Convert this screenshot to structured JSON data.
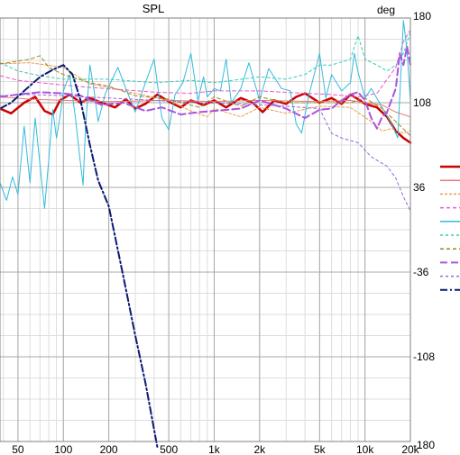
{
  "chart_data": {
    "type": "line",
    "title": "SPL",
    "right_axis_unit": "deg",
    "x_scale": "log",
    "xlim": [
      38,
      20000
    ],
    "ylim_right": [
      -180,
      180
    ],
    "x_ticks": [
      {
        "value": 50,
        "label": "50"
      },
      {
        "value": 100,
        "label": "100"
      },
      {
        "value": 200,
        "label": "200"
      },
      {
        "value": 500,
        "label": "500"
      },
      {
        "value": 1000,
        "label": "1k"
      },
      {
        "value": 2000,
        "label": "2k"
      },
      {
        "value": 5000,
        "label": "5k"
      },
      {
        "value": 10000,
        "label": "10k"
      },
      {
        "value": 20000,
        "label": "20k"
      }
    ],
    "y_ticks_right": [
      180,
      108,
      36,
      -36,
      -108,
      -180
    ],
    "grid": true,
    "legend_placement": "right",
    "series": [
      {
        "color": "#cc0000",
        "width": 2.5,
        "dash": "",
        "points": [
          [
            38,
            103
          ],
          [
            45,
            99
          ],
          [
            55,
            108
          ],
          [
            65,
            113
          ],
          [
            75,
            101
          ],
          [
            85,
            98
          ],
          [
            95,
            110
          ],
          [
            110,
            115
          ],
          [
            130,
            108
          ],
          [
            150,
            112
          ],
          [
            180,
            108
          ],
          [
            220,
            104
          ],
          [
            260,
            111
          ],
          [
            300,
            103
          ],
          [
            350,
            107
          ],
          [
            420,
            115
          ],
          [
            500,
            109
          ],
          [
            600,
            104
          ],
          [
            700,
            110
          ],
          [
            850,
            106
          ],
          [
            1000,
            110
          ],
          [
            1200,
            104
          ],
          [
            1500,
            112
          ],
          [
            1800,
            108
          ],
          [
            2100,
            100
          ],
          [
            2500,
            110
          ],
          [
            3000,
            107
          ],
          [
            3500,
            113
          ],
          [
            4000,
            116
          ],
          [
            5000,
            108
          ],
          [
            6000,
            112
          ],
          [
            7000,
            107
          ],
          [
            8000,
            115
          ],
          [
            9000,
            111
          ],
          [
            10000,
            107
          ],
          [
            12000,
            104
          ],
          [
            14000,
            96
          ],
          [
            16000,
            84
          ],
          [
            18000,
            78
          ],
          [
            20000,
            74
          ]
        ]
      },
      {
        "color": "#ee7777",
        "width": 1,
        "dash": "",
        "points": [
          [
            38,
            113
          ],
          [
            60,
            111
          ],
          [
            100,
            110
          ],
          [
            200,
            109
          ],
          [
            500,
            110
          ],
          [
            1000,
            109
          ],
          [
            2000,
            110
          ],
          [
            5000,
            109
          ],
          [
            8000,
            110
          ],
          [
            10000,
            108
          ],
          [
            13000,
            106
          ],
          [
            16000,
            100
          ],
          [
            20000,
            96
          ]
        ]
      },
      {
        "color": "#e8a050",
        "width": 1,
        "dash": "3,2",
        "points": [
          [
            38,
            141
          ],
          [
            60,
            142
          ],
          [
            100,
            138
          ],
          [
            150,
            124
          ],
          [
            200,
            121
          ],
          [
            300,
            116
          ],
          [
            500,
            110
          ],
          [
            700,
            101
          ],
          [
            900,
            96
          ],
          [
            1000,
            103
          ],
          [
            1500,
            96
          ],
          [
            2000,
            104
          ],
          [
            3000,
            99
          ],
          [
            5000,
            105
          ],
          [
            8000,
            104
          ],
          [
            11000,
            92
          ],
          [
            13000,
            84
          ],
          [
            15000,
            86
          ],
          [
            18000,
            82
          ],
          [
            20000,
            84
          ]
        ]
      },
      {
        "color": "#ee55cc",
        "width": 1,
        "dash": "4,3",
        "points": [
          [
            38,
            131
          ],
          [
            50,
            127
          ],
          [
            70,
            125
          ],
          [
            100,
            123
          ],
          [
            150,
            121
          ],
          [
            250,
            119
          ],
          [
            400,
            117
          ],
          [
            700,
            116
          ],
          [
            1000,
            118
          ],
          [
            2000,
            118
          ],
          [
            4000,
            116
          ],
          [
            6000,
            115
          ],
          [
            9000,
            113
          ],
          [
            12000,
            116
          ],
          [
            16000,
            138
          ],
          [
            18000,
            160
          ],
          [
            20000,
            170
          ]
        ]
      },
      {
        "color": "#33bbdd",
        "width": 1,
        "dash": "",
        "points": [
          [
            38,
            40
          ],
          [
            42,
            25
          ],
          [
            46,
            45
          ],
          [
            50,
            30
          ],
          [
            55,
            88
          ],
          [
            60,
            40
          ],
          [
            65,
            95
          ],
          [
            70,
            55
          ],
          [
            75,
            18
          ],
          [
            80,
            60
          ],
          [
            85,
            102
          ],
          [
            90,
            78
          ],
          [
            95,
            96
          ],
          [
            100,
            118
          ],
          [
            110,
            132
          ],
          [
            120,
            96
          ],
          [
            130,
            56
          ],
          [
            135,
            38
          ],
          [
            140,
            85
          ],
          [
            150,
            140
          ],
          [
            160,
            118
          ],
          [
            170,
            92
          ],
          [
            190,
            116
          ],
          [
            230,
            138
          ],
          [
            260,
            120
          ],
          [
            300,
            100
          ],
          [
            350,
            125
          ],
          [
            400,
            145
          ],
          [
            450,
            95
          ],
          [
            500,
            85
          ],
          [
            550,
            115
          ],
          [
            620,
            125
          ],
          [
            700,
            150
          ],
          [
            780,
            110
          ],
          [
            850,
            130
          ],
          [
            900,
            113
          ],
          [
            1000,
            120
          ],
          [
            1100,
            118
          ],
          [
            1200,
            145
          ],
          [
            1300,
            108
          ],
          [
            1500,
            120
          ],
          [
            1700,
            142
          ],
          [
            2000,
            110
          ],
          [
            2300,
            137
          ],
          [
            2800,
            120
          ],
          [
            3200,
            118
          ],
          [
            3500,
            90
          ],
          [
            3800,
            82
          ],
          [
            4200,
            112
          ],
          [
            5000,
            150
          ],
          [
            5500,
            112
          ],
          [
            6000,
            132
          ],
          [
            7000,
            118
          ],
          [
            8000,
            125
          ],
          [
            8500,
            150
          ],
          [
            9000,
            134
          ],
          [
            10000,
            112
          ],
          [
            11000,
            120
          ],
          [
            13000,
            104
          ],
          [
            15000,
            90
          ],
          [
            16500,
            78
          ],
          [
            18000,
            178
          ],
          [
            19000,
            152
          ],
          [
            20000,
            110
          ]
        ]
      },
      {
        "color": "#33ccbb",
        "width": 1,
        "dash": "3,3",
        "points": [
          [
            38,
            142
          ],
          [
            50,
            135
          ],
          [
            70,
            131
          ],
          [
            100,
            128
          ],
          [
            200,
            128
          ],
          [
            400,
            125
          ],
          [
            700,
            127
          ],
          [
            1000,
            125
          ],
          [
            2000,
            130
          ],
          [
            3000,
            128
          ],
          [
            4000,
            132
          ],
          [
            5000,
            140
          ],
          [
            6000,
            140
          ],
          [
            8000,
            145
          ],
          [
            9000,
            165
          ],
          [
            10000,
            145
          ],
          [
            12000,
            140
          ],
          [
            14000,
            135
          ],
          [
            16000,
            140
          ],
          [
            18000,
            150
          ],
          [
            20000,
            168
          ]
        ]
      },
      {
        "color": "#998822",
        "width": 1,
        "dash": "4,3",
        "points": [
          [
            38,
            141
          ],
          [
            60,
            145
          ],
          [
            70,
            148
          ],
          [
            80,
            138
          ],
          [
            100,
            132
          ],
          [
            150,
            125
          ],
          [
            200,
            122
          ],
          [
            300,
            114
          ],
          [
            500,
            111
          ],
          [
            800,
            104
          ],
          [
            1000,
            113
          ],
          [
            1500,
            105
          ],
          [
            2000,
            113
          ],
          [
            3000,
            108
          ],
          [
            5000,
            108
          ],
          [
            8000,
            108
          ],
          [
            10000,
            112
          ],
          [
            13000,
            103
          ],
          [
            16000,
            92
          ],
          [
            20000,
            80
          ]
        ]
      },
      {
        "color": "#aa55dd",
        "width": 2,
        "dash": "8,4",
        "points": [
          [
            38,
            113
          ],
          [
            50,
            115
          ],
          [
            70,
            117
          ],
          [
            100,
            116
          ],
          [
            130,
            114
          ],
          [
            180,
            106
          ],
          [
            250,
            108
          ],
          [
            350,
            101
          ],
          [
            450,
            104
          ],
          [
            600,
            98
          ],
          [
            800,
            100
          ],
          [
            1000,
            101
          ],
          [
            1500,
            103
          ],
          [
            2000,
            110
          ],
          [
            3000,
            103
          ],
          [
            4000,
            95
          ],
          [
            5000,
            102
          ],
          [
            6000,
            103
          ],
          [
            7000,
            110
          ],
          [
            8000,
            115
          ],
          [
            9000,
            117
          ],
          [
            10000,
            110
          ],
          [
            11000,
            95
          ],
          [
            12000,
            86
          ],
          [
            13000,
            96
          ],
          [
            14000,
            100
          ],
          [
            16000,
            120
          ],
          [
            17000,
            150
          ],
          [
            18000,
            140
          ],
          [
            19000,
            156
          ],
          [
            20000,
            140
          ]
        ]
      },
      {
        "color": "#9966dd",
        "width": 1,
        "dash": "3,3",
        "points": [
          [
            38,
            114
          ],
          [
            60,
            115
          ],
          [
            100,
            114
          ],
          [
            200,
            112
          ],
          [
            400,
            110
          ],
          [
            800,
            108
          ],
          [
            1500,
            107
          ],
          [
            3000,
            105
          ],
          [
            5000,
            103
          ],
          [
            6000,
            82
          ],
          [
            7000,
            78
          ],
          [
            9000,
            74
          ],
          [
            11000,
            62
          ],
          [
            14000,
            54
          ],
          [
            16000,
            44
          ],
          [
            18000,
            28
          ],
          [
            20000,
            16
          ]
        ]
      },
      {
        "color": "#0a1a70",
        "width": 2,
        "dash": "8,3,2,3",
        "points": [
          [
            38,
            103
          ],
          [
            45,
            108
          ],
          [
            55,
            118
          ],
          [
            70,
            130
          ],
          [
            85,
            136
          ],
          [
            100,
            140
          ],
          [
            115,
            132
          ],
          [
            130,
            110
          ],
          [
            150,
            72
          ],
          [
            170,
            42
          ],
          [
            200,
            20
          ],
          [
            250,
            -40
          ],
          [
            300,
            -90
          ],
          [
            350,
            -130
          ],
          [
            400,
            -170
          ],
          [
            420,
            -185
          ]
        ]
      }
    ]
  }
}
